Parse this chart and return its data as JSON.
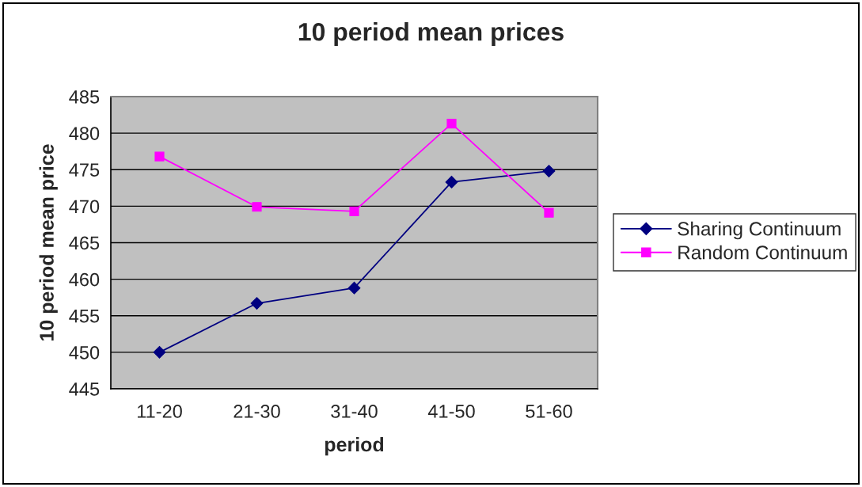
{
  "chart_data": {
    "type": "line",
    "title": "10 period mean prices",
    "xlabel": "period",
    "ylabel": "10 period mean price",
    "categories": [
      "11-20",
      "21-30",
      "31-40",
      "41-50",
      "51-60"
    ],
    "series": [
      {
        "name": "Sharing Continuum",
        "color": "#000080",
        "marker": "diamond",
        "values": [
          450.0,
          456.7,
          458.8,
          473.3,
          474.8
        ]
      },
      {
        "name": "Random Continuum",
        "color": "#ff00ff",
        "marker": "square",
        "values": [
          476.8,
          469.9,
          469.3,
          481.3,
          469.1
        ]
      }
    ],
    "ylim": [
      445,
      485
    ],
    "yticks": [
      445,
      450,
      455,
      460,
      465,
      470,
      475,
      480,
      485
    ],
    "grid": "y",
    "legend": "right",
    "line_style": "solid"
  }
}
